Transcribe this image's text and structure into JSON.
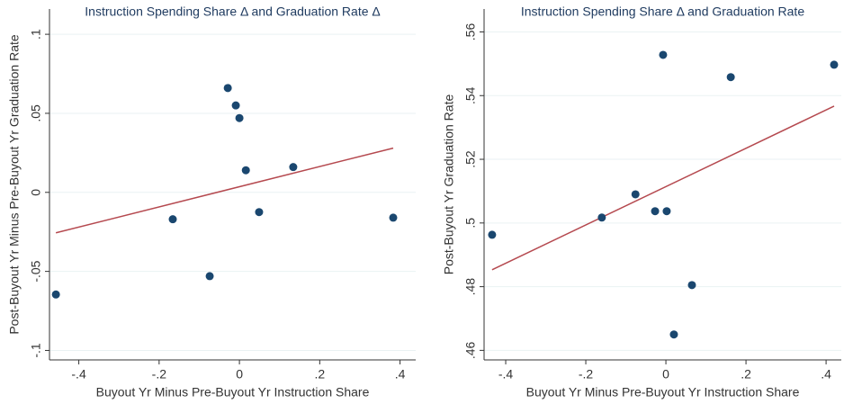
{
  "chart_data": [
    {
      "type": "scatter",
      "title": "Instruction Spending Share Δ and Graduation Rate Δ",
      "x_label": "Buyout Yr Minus Pre-Buyout Yr Instruction Share",
      "y_label": "Post-Buyout Yr Minus Pre-Buyout Yr Graduation Rate",
      "x": [
        -0.457,
        -0.166,
        -0.074,
        -0.029,
        -0.009,
        0.0,
        0.016,
        0.049,
        0.134,
        0.383
      ],
      "values": [
        -0.0646,
        -0.017,
        -0.053,
        0.066,
        0.055,
        0.047,
        0.014,
        -0.0125,
        0.016,
        -0.016
      ],
      "color": "#1a476f",
      "fit_line": {
        "x": [
          -0.457,
          0.383
        ],
        "values": [
          -0.0256,
          0.028
        ],
        "color": "#b5494f"
      },
      "xlim": [
        -0.473,
        0.439
      ],
      "ylim": [
        -0.106,
        0.116
      ],
      "xticks": [
        {
          "value": -0.4,
          "label": "-.4"
        },
        {
          "value": -0.2,
          "label": "-.2"
        },
        0,
        {
          "value": 0.2,
          "label": ".2"
        },
        {
          "value": 0.4,
          "label": ".4"
        }
      ],
      "yticks": [
        {
          "value": -0.1,
          "label": "-.1"
        },
        {
          "value": -0.05,
          "label": "-.05"
        },
        0,
        {
          "value": 0.05,
          "label": ".05"
        },
        {
          "value": 0.1,
          "label": ".1"
        }
      ],
      "grid": true
    },
    {
      "type": "scatter",
      "title": "Instruction Spending Share Δ and Graduation Rate",
      "x_label": "Buyout Yr Minus Pre-Buyout Yr Instruction Share",
      "y_label": "Post-Buyout Yr Graduation Rate",
      "x": [
        -0.434,
        -0.16,
        -0.076,
        -0.007,
        -0.027,
        0.002,
        0.065,
        0.02,
        0.162,
        0.42
      ],
      "values": [
        0.4963,
        0.5017,
        0.509,
        0.5528,
        0.5037,
        0.5037,
        0.4805,
        0.465,
        0.5458,
        0.5497
      ],
      "color": "#1a476f",
      "fit_line": {
        "x": [
          -0.434,
          0.42
        ],
        "values": [
          0.4853,
          0.5367
        ],
        "color": "#b5494f"
      },
      "xlim": [
        -0.454,
        0.438
      ],
      "ylim": [
        0.457,
        0.5672
      ],
      "xticks": [
        {
          "value": -0.4,
          "label": "-.4"
        },
        {
          "value": -0.2,
          "label": "-.2"
        },
        0,
        {
          "value": 0.2,
          "label": ".2"
        },
        {
          "value": 0.4,
          "label": ".4"
        }
      ],
      "yticks": [
        {
          "value": 0.46,
          "label": ".46"
        },
        {
          "value": 0.48,
          "label": ".48"
        },
        {
          "value": 0.5,
          "label": ".5"
        },
        {
          "value": 0.52,
          "label": ".52"
        },
        {
          "value": 0.54,
          "label": ".54"
        },
        {
          "value": 0.56,
          "label": ".56"
        }
      ],
      "grid": true
    }
  ]
}
